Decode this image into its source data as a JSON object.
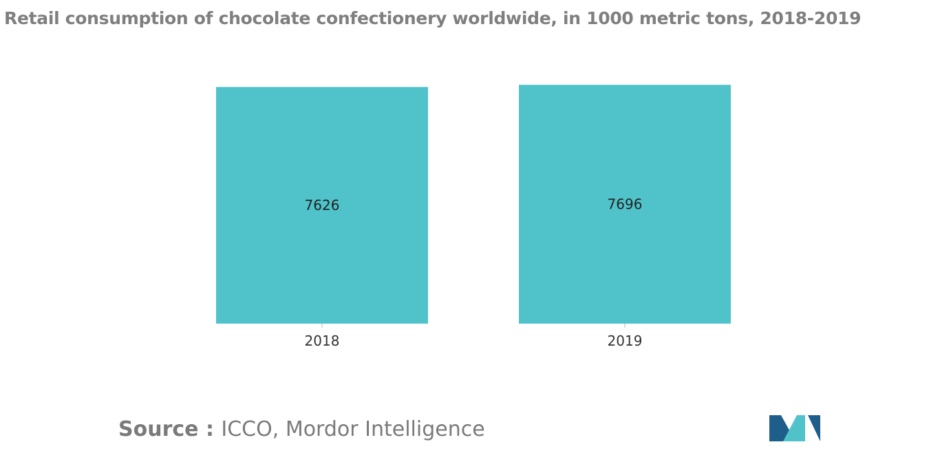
{
  "chart_data": {
    "type": "bar",
    "title": "Retail consumption of chocolate confectionery worldwide, in 1000 metric tons, 2018-2019",
    "categories": [
      "2018",
      "2019"
    ],
    "values": [
      7626,
      7696
    ],
    "value_labels": [
      "7626",
      "7696"
    ],
    "xlabel": "",
    "ylabel": "",
    "ylim": [
      0,
      7700
    ],
    "grid": false,
    "legend": "none",
    "bar_color": "#50c3ca"
  },
  "source": {
    "prefix": "Source : ",
    "text": "ICCO, Mordor Intelligence"
  },
  "colors": {
    "title": "#7f7f7f",
    "bars": "#50c3ca",
    "logo_dark": "#1d5f8a",
    "logo_light": "#50c3ca"
  },
  "logo": {
    "icon": "mordor-intelligence-logo-icon"
  }
}
